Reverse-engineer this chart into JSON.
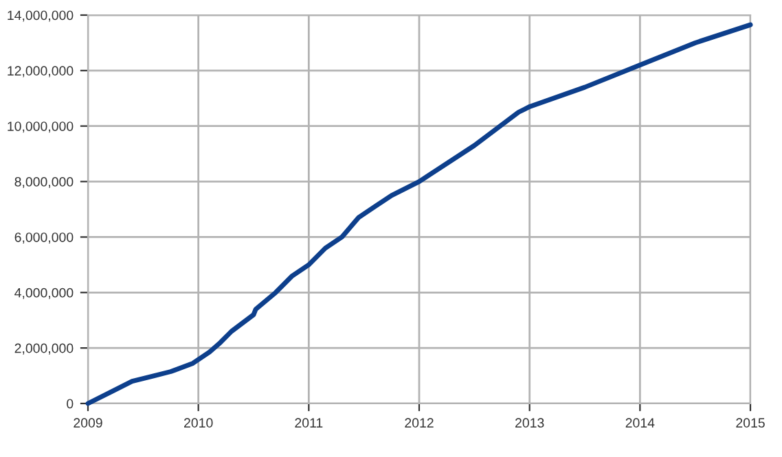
{
  "chart_data": {
    "type": "line",
    "x": [
      2009.0,
      2009.2,
      2009.4,
      2009.6,
      2009.75,
      2009.95,
      2010.1,
      2010.2,
      2010.3,
      2010.5,
      2010.52,
      2010.7,
      2010.85,
      2011.0,
      2011.15,
      2011.3,
      2011.45,
      2011.6,
      2011.75,
      2012.0,
      2012.5,
      2012.9,
      2013.0,
      2013.5,
      2014.0,
      2014.5,
      2015.0
    ],
    "series": [
      {
        "color": "#0d3f8c",
        "values": [
          0,
          400000,
          800000,
          1000000,
          1150000,
          1450000,
          1850000,
          2200000,
          2600000,
          3200000,
          3400000,
          4000000,
          4600000,
          5000000,
          5600000,
          6000000,
          6700000,
          7100000,
          7500000,
          8000000,
          9300000,
          10500000,
          10700000,
          11400000,
          12200000,
          13000000,
          13650000
        ]
      }
    ],
    "xlim": [
      2009,
      2015
    ],
    "xticks": [
      2009,
      2010,
      2011,
      2012,
      2013,
      2014,
      2015
    ],
    "ylim": [
      0,
      14000000
    ],
    "yticks": [
      0,
      {
        "value": 2000000,
        "label": "2,000,000"
      },
      {
        "value": 4000000,
        "label": "4,000,000"
      },
      {
        "value": 6000000,
        "label": "6,000,000"
      },
      {
        "value": 8000000,
        "label": "8,000,000"
      },
      {
        "value": 10000000,
        "label": "10,000,000"
      },
      {
        "value": 12000000,
        "label": "12,000,000"
      },
      {
        "value": 14000000,
        "label": "14,000,000"
      }
    ],
    "grid": true,
    "legend": false
  }
}
